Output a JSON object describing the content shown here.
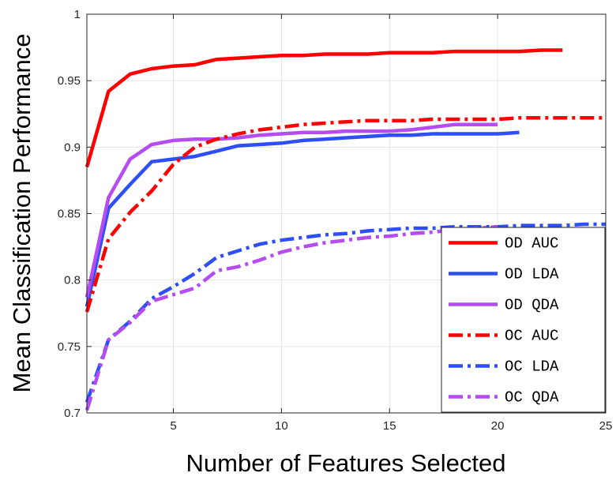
{
  "chart_data": {
    "type": "line",
    "title": "",
    "xlabel": "Number of Features Selected",
    "ylabel": "Mean Classification Performance",
    "xlim": [
      1,
      25
    ],
    "ylim": [
      0.7,
      1
    ],
    "xticks": [
      5,
      10,
      15,
      20,
      25
    ],
    "yticks": [
      0.7,
      0.75,
      0.8,
      0.85,
      0.9,
      0.95,
      1
    ],
    "ytick_labels": [
      "0.7",
      "0.75",
      "0.8",
      "0.85",
      "0.9",
      "0.95",
      "1"
    ],
    "grid": true,
    "legend_position": "bottom-right",
    "series": [
      {
        "name": "OD AUC",
        "color": "#ff0000",
        "dash": "solid",
        "x": [
          1,
          2,
          3,
          4,
          5,
          6,
          7,
          8,
          9,
          10,
          11,
          12,
          13,
          14,
          15,
          16,
          17,
          18,
          19,
          20,
          21,
          22,
          23
        ],
        "y": [
          0.885,
          0.942,
          0.955,
          0.959,
          0.961,
          0.962,
          0.966,
          0.967,
          0.968,
          0.969,
          0.969,
          0.97,
          0.97,
          0.97,
          0.971,
          0.971,
          0.971,
          0.972,
          0.972,
          0.972,
          0.972,
          0.973,
          0.973
        ]
      },
      {
        "name": "OD LDA",
        "color": "#2e4ff5",
        "dash": "solid",
        "x": [
          1,
          2,
          3,
          4,
          5,
          6,
          7,
          8,
          9,
          10,
          11,
          12,
          13,
          14,
          15,
          16,
          17,
          18,
          19,
          20,
          21
        ],
        "y": [
          0.78,
          0.854,
          0.872,
          0.889,
          0.891,
          0.893,
          0.897,
          0.901,
          0.902,
          0.903,
          0.905,
          0.906,
          0.907,
          0.908,
          0.909,
          0.909,
          0.91,
          0.91,
          0.91,
          0.91,
          0.911
        ]
      },
      {
        "name": "OD QDA",
        "color": "#b44cf0",
        "dash": "solid",
        "x": [
          1,
          2,
          3,
          4,
          5,
          6,
          7,
          8,
          9,
          10,
          11,
          12,
          13,
          14,
          15,
          16,
          17,
          18,
          19,
          20
        ],
        "y": [
          0.787,
          0.862,
          0.891,
          0.902,
          0.905,
          0.906,
          0.906,
          0.907,
          0.909,
          0.91,
          0.911,
          0.911,
          0.912,
          0.912,
          0.912,
          0.913,
          0.915,
          0.917,
          0.917,
          0.917
        ]
      },
      {
        "name": "OC AUC",
        "color": "#ff0000",
        "dash": "dashdot",
        "x": [
          1,
          2,
          3,
          4,
          5,
          6,
          7,
          8,
          9,
          10,
          11,
          12,
          13,
          14,
          15,
          16,
          17,
          18,
          19,
          20,
          21,
          22,
          23,
          24,
          25
        ],
        "y": [
          0.776,
          0.831,
          0.851,
          0.867,
          0.887,
          0.9,
          0.906,
          0.91,
          0.913,
          0.915,
          0.917,
          0.918,
          0.919,
          0.92,
          0.92,
          0.92,
          0.921,
          0.921,
          0.921,
          0.921,
          0.922,
          0.922,
          0.922,
          0.922,
          0.922
        ]
      },
      {
        "name": "OC LDA",
        "color": "#2e4ff5",
        "dash": "dashdot",
        "x": [
          1,
          2,
          3,
          4,
          5,
          6,
          7,
          8,
          9,
          10,
          11,
          12,
          13,
          14,
          15,
          16,
          17,
          18,
          19,
          20,
          21,
          22,
          23,
          24,
          25
        ],
        "y": [
          0.708,
          0.755,
          0.769,
          0.786,
          0.795,
          0.805,
          0.817,
          0.822,
          0.827,
          0.83,
          0.832,
          0.834,
          0.835,
          0.837,
          0.838,
          0.839,
          0.839,
          0.84,
          0.84,
          0.84,
          0.841,
          0.841,
          0.841,
          0.842,
          0.842
        ]
      },
      {
        "name": "OC QDA",
        "color": "#b44cf0",
        "dash": "dashdot",
        "x": [
          1,
          2,
          3,
          4,
          5,
          6,
          7,
          8,
          9,
          10,
          11,
          12,
          13,
          14,
          15,
          16,
          17,
          18,
          19,
          20
        ],
        "y": [
          0.702,
          0.755,
          0.768,
          0.784,
          0.789,
          0.794,
          0.807,
          0.81,
          0.815,
          0.821,
          0.825,
          0.828,
          0.83,
          0.832,
          0.833,
          0.835,
          0.836,
          0.838,
          0.839,
          0.84
        ]
      }
    ]
  }
}
